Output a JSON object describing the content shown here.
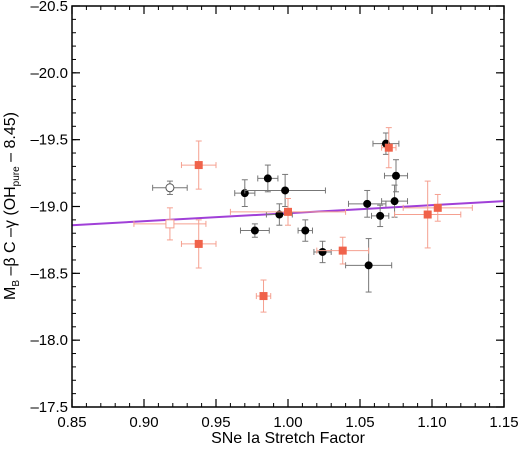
{
  "chart_data": {
    "type": "scatter",
    "xlabel": "SNe Ia Stretch Factor",
    "ylabel": {
      "prefix": "M",
      "prefix_sub": "B",
      "middle": " –β C –γ (OH",
      "sub": "pure",
      "suffix": " – 8.45)"
    },
    "xlim": [
      0.85,
      1.15
    ],
    "ylim": [
      -17.5,
      -20.5
    ],
    "y_inverted": true,
    "xticks": [
      "0.85",
      "0.90",
      "0.95",
      "1.00",
      "1.05",
      "1.10",
      "1.15"
    ],
    "yticks": [
      "–20.5",
      "–20.0",
      "–19.5",
      "–19.0",
      "–18.5",
      "–18.0",
      "–17.5"
    ],
    "xtick_values": [
      0.85,
      0.9,
      0.95,
      1.0,
      1.05,
      1.1,
      1.15
    ],
    "ytick_values": [
      -20.5,
      -20.0,
      -19.5,
      -19.0,
      -18.5,
      -18.0,
      -17.5
    ],
    "colors": {
      "black_series": "#000000",
      "red_series": "#f0624a",
      "red_errorbar": "#f5a090",
      "open_series": "#555555",
      "fit_line": "#a040d8",
      "errorbar_black": "#777777"
    },
    "fit_line": {
      "x": [
        0.85,
        1.15
      ],
      "y": [
        -18.86,
        -19.04
      ]
    },
    "series": [
      {
        "marker": "filled-circle",
        "points": [
          {
            "x": 0.97,
            "y": -19.1,
            "xerr": 0.007,
            "yerr": 0.1
          },
          {
            "x": 0.977,
            "y": -18.82,
            "xerr": 0.01,
            "yerr": 0.05
          },
          {
            "x": 0.986,
            "y": -19.21,
            "xerr": 0.007,
            "yerr": 0.1
          },
          {
            "x": 0.994,
            "y": -18.94,
            "xerr": 0.009,
            "yerr": 0.08
          },
          {
            "x": 0.998,
            "y": -19.12,
            "xerr": 0.028,
            "yerr": 0.12
          },
          {
            "x": 1.012,
            "y": -18.82,
            "xerr": 0.005,
            "yerr": 0.08
          },
          {
            "x": 1.024,
            "y": -18.66,
            "xerr": 0.006,
            "yerr": 0.08
          },
          {
            "x": 1.055,
            "y": -19.02,
            "xerr": 0.013,
            "yerr": 0.1
          },
          {
            "x": 1.056,
            "y": -18.56,
            "xerr": 0.016,
            "yerr": 0.2
          },
          {
            "x": 1.064,
            "y": -18.93,
            "xerr": 0.006,
            "yerr": 0.08
          },
          {
            "x": 1.068,
            "y": -19.47,
            "xerr": 0.009,
            "yerr": 0.08
          },
          {
            "x": 1.074,
            "y": -19.04,
            "xerr": 0.009,
            "yerr": 0.12
          },
          {
            "x": 1.075,
            "y": -19.23,
            "xerr": 0.008,
            "yerr": 0.12
          }
        ]
      },
      {
        "marker": "filled-square",
        "points": [
          {
            "x": 0.938,
            "y": -19.31,
            "xerr": 0.012,
            "yerr": 0.18
          },
          {
            "x": 0.938,
            "y": -18.72,
            "xerr": 0.012,
            "yerr": 0.18
          },
          {
            "x": 0.983,
            "y": -18.33,
            "xerr": 0.005,
            "yerr": 0.12
          },
          {
            "x": 1.0,
            "y": -18.96,
            "xerr": 0.04,
            "yerr": 0.1
          },
          {
            "x": 1.038,
            "y": -18.67,
            "xerr": 0.018,
            "yerr": 0.1
          },
          {
            "x": 1.07,
            "y": -19.44,
            "xerr": 0.005,
            "yerr": 0.15
          },
          {
            "x": 1.097,
            "y": -18.94,
            "xerr": 0.023,
            "yerr": 0.25
          },
          {
            "x": 1.104,
            "y": -18.99,
            "xerr": 0.024,
            "yerr": 0.1
          }
        ]
      },
      {
        "marker": "open-circle",
        "points": [
          {
            "x": 0.918,
            "y": -19.14,
            "xerr": 0.012,
            "yerr": 0.05
          }
        ]
      },
      {
        "marker": "open-square",
        "points": [
          {
            "x": 0.918,
            "y": -18.87,
            "xerr": 0.025,
            "yerr": 0.12
          }
        ]
      }
    ]
  }
}
